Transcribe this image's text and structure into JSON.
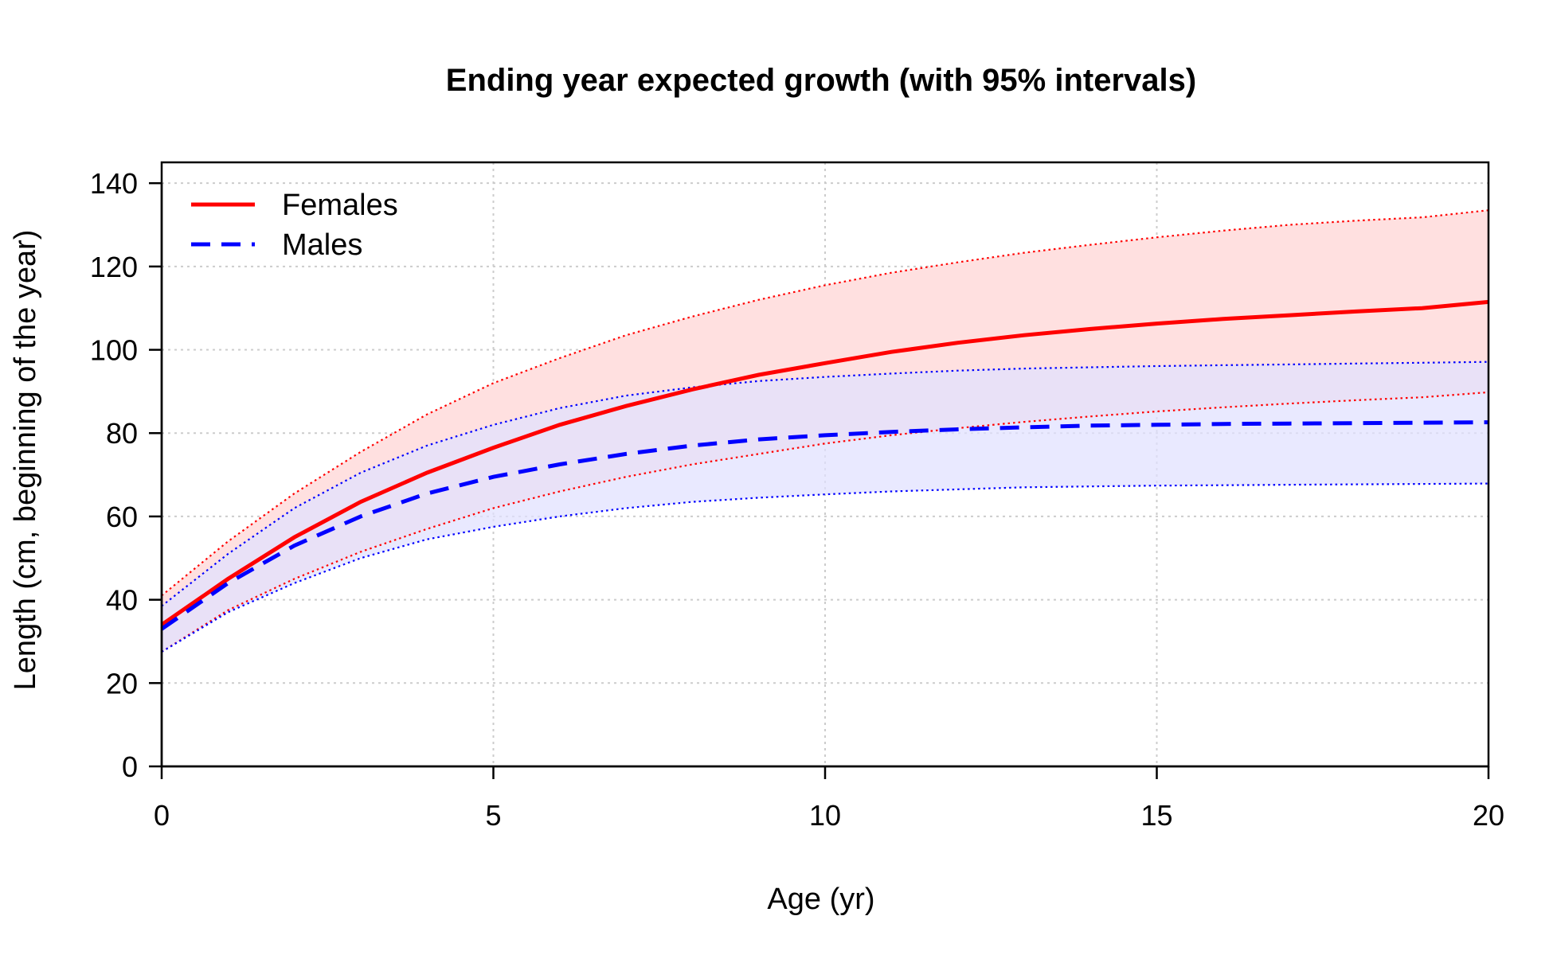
{
  "chart_data": {
    "type": "line",
    "title": "Ending year expected growth (with 95% intervals)",
    "xlabel": "Age (yr)",
    "ylabel": "Length (cm, beginning of the year)",
    "xlim": [
      0,
      20
    ],
    "ylim": [
      0,
      145
    ],
    "xticks": [
      0,
      5,
      10,
      15,
      20
    ],
    "yticks": [
      0,
      20,
      40,
      60,
      80,
      100,
      120,
      140
    ],
    "grid": true,
    "legend_position": "top-left",
    "x": [
      0,
      1,
      2,
      3,
      4,
      5,
      6,
      7,
      8,
      9,
      10,
      11,
      12,
      13,
      14,
      15,
      16,
      17,
      18,
      19,
      20
    ],
    "series": [
      {
        "name": "Females",
        "color": "#FF0000",
        "band_color": "#FFE0E0",
        "line_style": "solid",
        "values": [
          34,
          45,
          55,
          63.5,
          70.5,
          76.5,
          82,
          86.5,
          90.5,
          94,
          96.8,
          99.5,
          101.7,
          103.5,
          105,
          106.3,
          107.4,
          108.3,
          109.2,
          110,
          111.5
        ],
        "lower": [
          27.5,
          37.5,
          45,
          51.5,
          57,
          62,
          66,
          69.5,
          72.5,
          75,
          77.5,
          79.5,
          81.2,
          82.7,
          84,
          85.2,
          86.2,
          87.1,
          87.9,
          88.6,
          89.8
        ],
        "upper": [
          41,
          54,
          65.5,
          75.5,
          84.5,
          92,
          98,
          103.5,
          108,
          112,
          115.5,
          118.5,
          121,
          123.3,
          125.2,
          127,
          128.6,
          130,
          131,
          131.8,
          133.5
        ]
      },
      {
        "name": "Males",
        "color": "#0000FF",
        "band_color": "#E0E0FF",
        "line_style": "dashed",
        "values": [
          33,
          44,
          53,
          60,
          65.5,
          69.5,
          72.5,
          75,
          77,
          78.5,
          79.5,
          80.3,
          80.9,
          81.4,
          81.8,
          82,
          82.2,
          82.3,
          82.4,
          82.5,
          82.6
        ],
        "lower": [
          27.5,
          37,
          44,
          50,
          54.5,
          57.5,
          60,
          62,
          63.5,
          64.5,
          65.3,
          66,
          66.5,
          67,
          67.2,
          67.4,
          67.5,
          67.6,
          67.7,
          67.8,
          67.9
        ],
        "upper": [
          38.5,
          51,
          62,
          70.5,
          77,
          82,
          86,
          89,
          91,
          92.5,
          93.5,
          94.3,
          95,
          95.5,
          95.8,
          96.1,
          96.3,
          96.5,
          96.7,
          96.9,
          97.1
        ]
      }
    ]
  }
}
